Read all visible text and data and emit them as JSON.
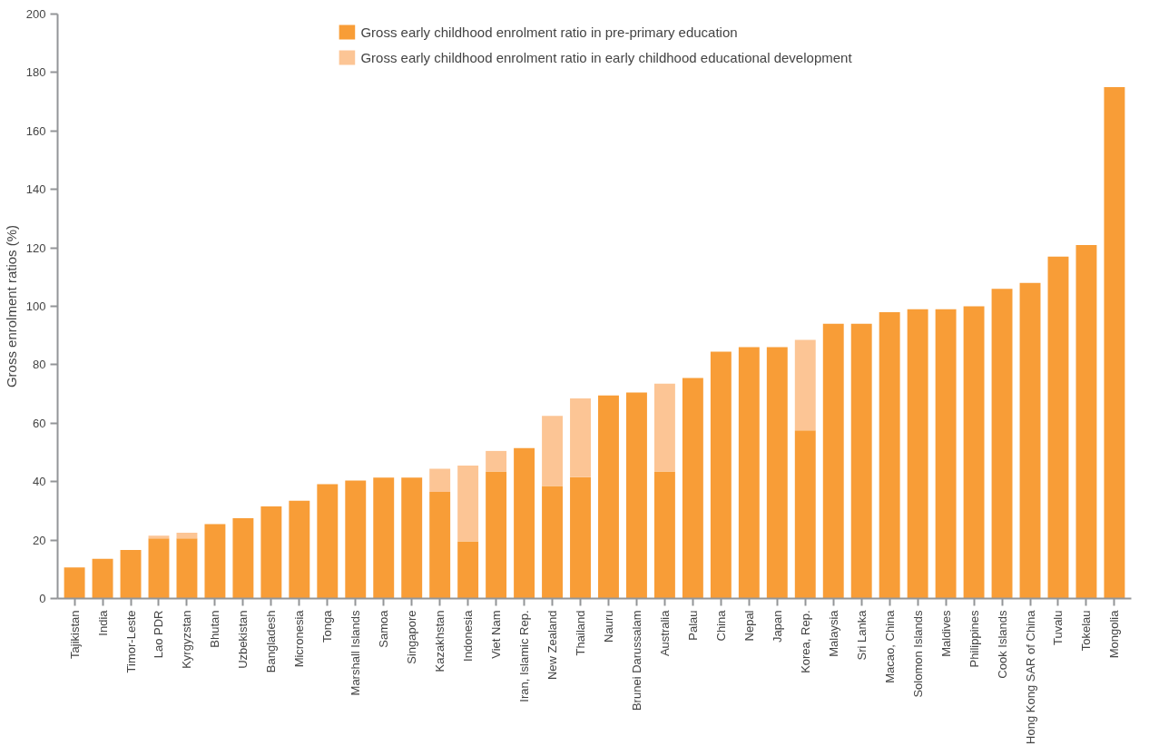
{
  "chart_data": {
    "type": "bar",
    "stacked": true,
    "ylabel": "Gross enrolment ratios (%)",
    "categories": [
      "Tajikistan",
      "India",
      "Timor-Leste",
      "Lao PDR",
      "Kyrgyzstan",
      "Bhutan",
      "Uzbekistan",
      "Bangladesh",
      "Micronesia",
      "Tonga",
      "Marshall Islands",
      "Samoa",
      "Singapore",
      "Kazakhstan",
      "Indonesia",
      "Viet Nam",
      "Iran, Islamic Rep.",
      "New Zealand",
      "Thailand",
      "Nauru",
      "Brunei Darussalam",
      "Australia",
      "Palau",
      "China",
      "Nepal",
      "Japan",
      "Korea, Rep.",
      "Malaysia",
      "Sri Lanka",
      "Macao, China",
      "Solomon Islands",
      "Maldives",
      "Philippines",
      "Cook Islands",
      "Hong Kong SAR of China",
      "Tuvalu",
      "Tokelau",
      "Mongolia"
    ],
    "series": [
      {
        "name": "Gross early childhood enrolment ratio in pre-primary education",
        "color": "#f89d37",
        "values": [
          10.6,
          13.6,
          16.6,
          20.6,
          20.6,
          25.5,
          27.5,
          31.5,
          33.5,
          39.1,
          40.4,
          41.4,
          41.4,
          36.5,
          19.6,
          43.5,
          51.5,
          38.5,
          41.5,
          69.5,
          70.5,
          43.5,
          75.5,
          84.5,
          86,
          86,
          57.5,
          94,
          94,
          98,
          99,
          99,
          100,
          106,
          108,
          117,
          121,
          175
        ]
      },
      {
        "name": "Gross early childhood enrolment ratio in early childhood educational development",
        "color": "#fcc595",
        "values": [
          null,
          null,
          null,
          0.9,
          1.9,
          null,
          null,
          null,
          null,
          null,
          null,
          null,
          null,
          7.9,
          25.9,
          7,
          null,
          24,
          27,
          null,
          null,
          30,
          null,
          null,
          null,
          null,
          31,
          null,
          null,
          null,
          null,
          null,
          null,
          null,
          null,
          null,
          null,
          null
        ]
      }
    ],
    "ylim": [
      0,
      200
    ],
    "yticks": [
      0,
      20,
      40,
      60,
      80,
      100,
      120,
      140,
      160,
      180,
      200
    ],
    "grid": false,
    "legend": "top"
  }
}
